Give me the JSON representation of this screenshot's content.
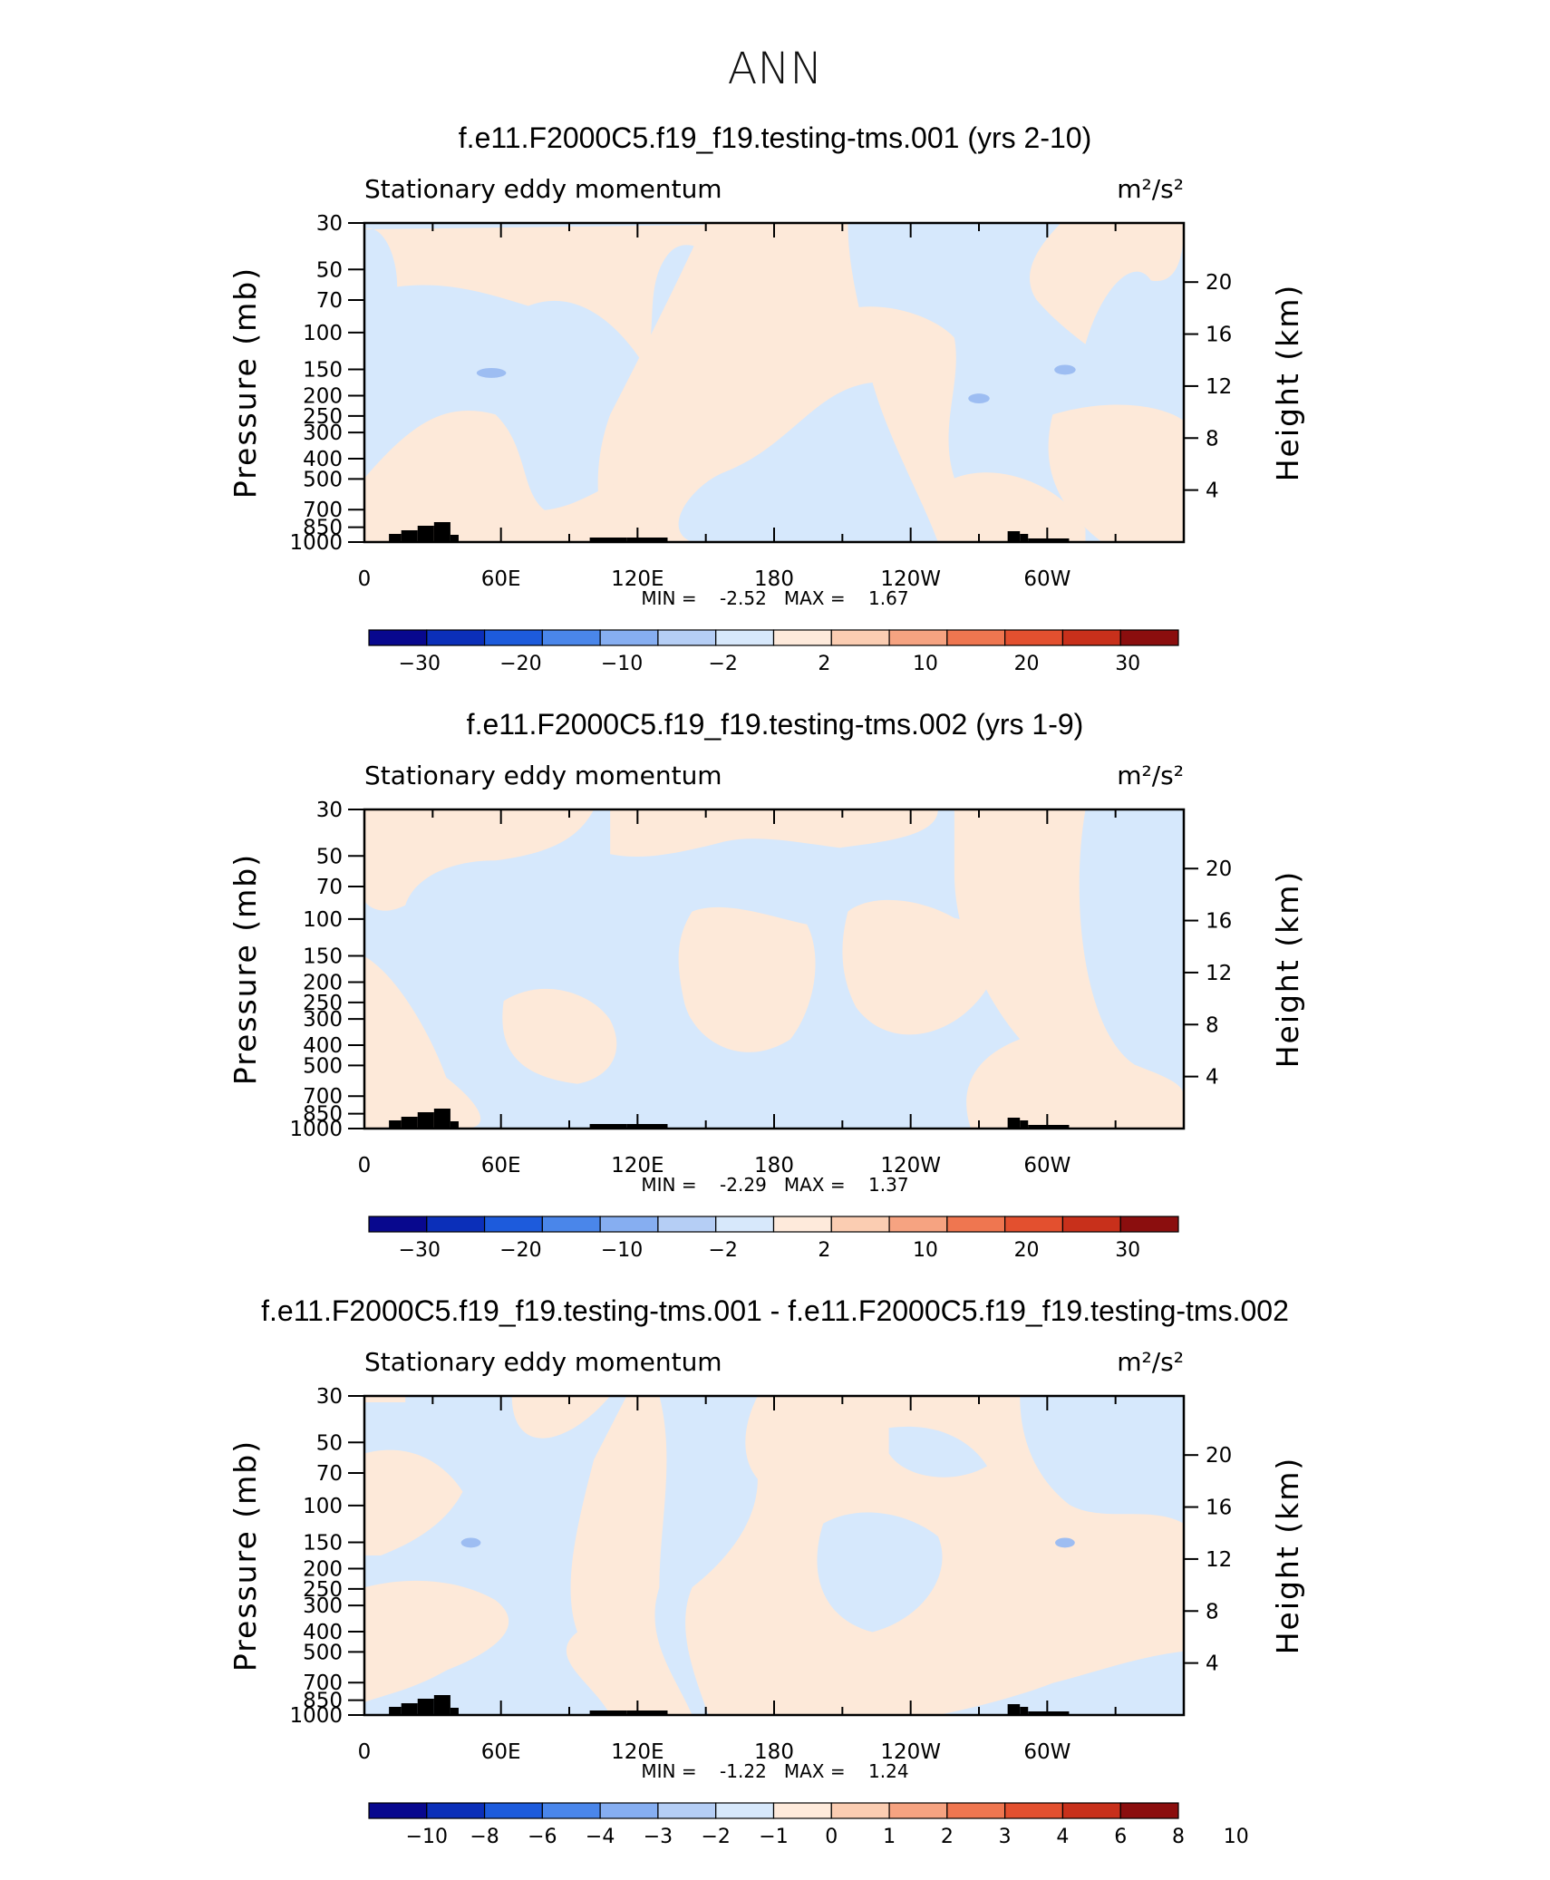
{
  "page_title": "ANN",
  "panels": [
    {
      "title": "f.e11.F2000C5.f19_f19.testing-tms.001 (yrs 2-10)",
      "left_label": "Stationary eddy momentum",
      "units": "m²/s²",
      "min_max": "MIN =    -2.52   MAX =    1.67",
      "colorbar_labels": [
        "-30",
        "-20",
        "-10",
        "-2",
        "2",
        "10",
        "20",
        "30"
      ],
      "colorbar_style": "A"
    },
    {
      "title": "f.e11.F2000C5.f19_f19.testing-tms.002 (yrs 1-9)",
      "left_label": "Stationary eddy momentum",
      "units": "m²/s²",
      "min_max": "MIN =    -2.29   MAX =    1.37",
      "colorbar_labels": [
        "-30",
        "-20",
        "-10",
        "-2",
        "2",
        "10",
        "20",
        "30"
      ],
      "colorbar_style": "A"
    },
    {
      "title": "f.e11.F2000C5.f19_f19.testing-tms.001 - f.e11.F2000C5.f19_f19.testing-tms.002",
      "left_label": "Stationary eddy momentum",
      "units": "m²/s²",
      "min_max": "MIN =    -1.22   MAX =    1.24",
      "colorbar_labels": [
        "-10",
        "-8",
        "-6",
        "-4",
        "-3",
        "-2",
        "-1",
        "0",
        "1",
        "2",
        "3",
        "4",
        "6",
        "8",
        "10"
      ],
      "colorbar_style": "B"
    }
  ],
  "axes": {
    "y_left_label": "Pressure (mb)",
    "y_right_label": "Height (km)",
    "y_left_ticks": [
      "30",
      "50",
      "70",
      "100",
      "150",
      "200",
      "250",
      "300",
      "400",
      "500",
      "700",
      "850",
      "1000"
    ],
    "y_right_ticks": [
      "20",
      "16",
      "12",
      "8",
      "4"
    ],
    "x_ticks": [
      "0",
      "60E",
      "120E",
      "180",
      "120W",
      "60W"
    ]
  },
  "colors": {
    "scale": [
      "#08088e",
      "#0b2fb9",
      "#1d5bdc",
      "#4a86ea",
      "#86aef1",
      "#b5cef5",
      "#d7e8fb",
      "#feeadb",
      "#fbcdb2",
      "#f6a381",
      "#ef7650",
      "#e3502f",
      "#c8301b",
      "#8b0e0e"
    ],
    "negative_fill": "#d6e8fc",
    "positive_fill": "#fde9d9",
    "blob_fill": "#9dbdf2"
  },
  "chart_data": [
    {
      "type": "heatmap",
      "title": "f.e11.F2000C5.f19_f19.testing-tms.001 (yrs 2-10)",
      "ylabel": "Pressure (mb)",
      "y2label": "Height (km)",
      "min": -2.52,
      "max": 1.67,
      "levels": [
        -30,
        -25,
        -20,
        -15,
        -10,
        -5,
        -2,
        0,
        2,
        5,
        10,
        15,
        20,
        25,
        30
      ]
    },
    {
      "type": "heatmap",
      "title": "f.e11.F2000C5.f19_f19.testing-tms.002 (yrs 1-9)",
      "ylabel": "Pressure (mb)",
      "y2label": "Height (km)",
      "min": -2.29,
      "max": 1.37,
      "levels": [
        -30,
        -25,
        -20,
        -15,
        -10,
        -5,
        -2,
        0,
        2,
        5,
        10,
        15,
        20,
        25,
        30
      ]
    },
    {
      "type": "heatmap",
      "title": "f.e11.F2000C5.f19_f19.testing-tms.001 - f.e11.F2000C5.f19_f19.testing-tms.002",
      "ylabel": "Pressure (mb)",
      "y2label": "Height (km)",
      "min": -1.22,
      "max": 1.24,
      "levels": [
        -10,
        -8,
        -6,
        -4,
        -3,
        -2,
        -1,
        0,
        1,
        2,
        3,
        4,
        6,
        8,
        10
      ]
    }
  ]
}
